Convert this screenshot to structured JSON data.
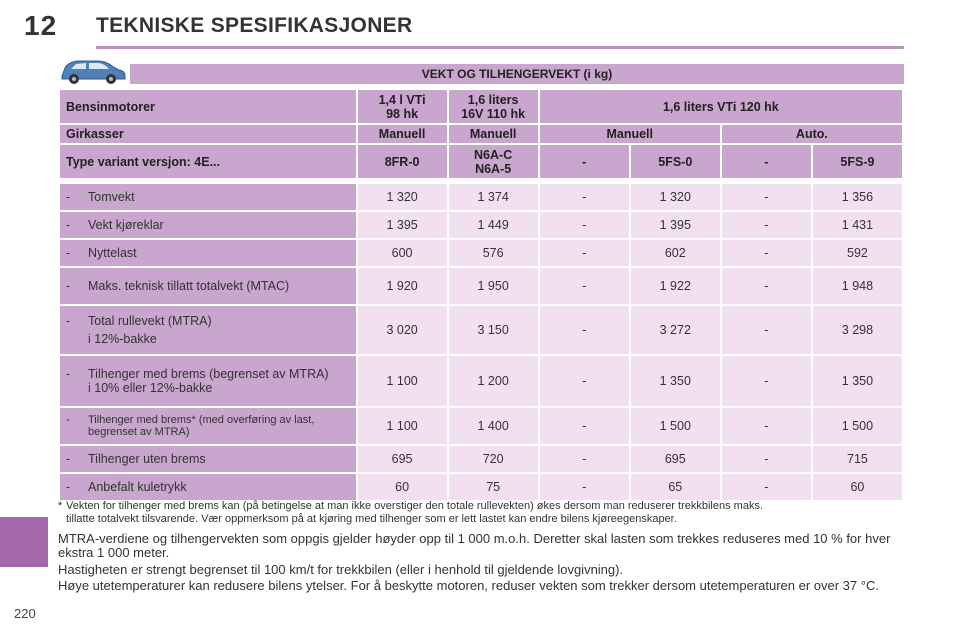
{
  "header": {
    "chapter_number": "12",
    "title": "TEKNISKE SPESIFIKASJONER"
  },
  "page_number": "220",
  "section_band": "VEKT OG TILHENGERVEKT (i kg)",
  "table": {
    "engine_label": "Bensinmotorer",
    "engines": [
      "1,4 l VTi 98 hk",
      "1,6 liters 16V 110 hk",
      "1,6 liters VTi 120 hk"
    ],
    "engine_lines": {
      "e1_line1": "1,4 l VTi",
      "e1_line2": "98 hk",
      "e2_line1": "1,6 liters",
      "e2_line2": "16V 110 hk",
      "e3": "1,6 liters VTi 120 hk"
    },
    "gearbox_label": "Girkasser",
    "gearboxes": [
      "Manuell",
      "Manuell",
      "Manuell",
      "Auto."
    ],
    "variant_label": "Type variant versjon: 4E...",
    "variants": {
      "v1": "8FR-0",
      "v2_line1": "N6A-C",
      "v2_line2": "N6A-5",
      "v3": "-",
      "v4": "5FS-0",
      "v5": "-",
      "v6": "5FS-9"
    },
    "rows": [
      {
        "label": "Tomvekt",
        "values": [
          "1 320",
          "1 374",
          "-",
          "1 320",
          "-",
          "1 356"
        ]
      },
      {
        "label": "Vekt kjøreklar",
        "values": [
          "1 395",
          "1 449",
          "-",
          "1 395",
          "-",
          "1 431"
        ]
      },
      {
        "label": "Nyttelast",
        "values": [
          "600",
          "576",
          "-",
          "602",
          "-",
          "592"
        ]
      },
      {
        "label": "Maks. teknisk tillatt totalvekt (MTAC)",
        "values": [
          "1 920",
          "1 950",
          "-",
          "1 922",
          "-",
          "1 948"
        ]
      },
      {
        "label": "Total rullevekt (MTRA)",
        "sub": "i 12%-bakke",
        "values": [
          "3 020",
          "3 150",
          "-",
          "3 272",
          "-",
          "3 298"
        ]
      },
      {
        "label": "Tilhenger med brems (begrenset av MTRA)",
        "sub": "i 10% eller 12%-bakke",
        "values": [
          "1 100",
          "1 200",
          "-",
          "1 350",
          "-",
          "1 350"
        ]
      },
      {
        "label": "Tilhenger med brems* (med overføring av last, begrenset av MTRA)",
        "values": [
          "1 100",
          "1 400",
          "-",
          "1 500",
          "-",
          "1 500"
        ]
      },
      {
        "label": "Tilhenger uten brems",
        "values": [
          "695",
          "720",
          "-",
          "695",
          "-",
          "715"
        ]
      },
      {
        "label": "Anbefalt kuletrykk",
        "values": [
          "60",
          "75",
          "-",
          "65",
          "-",
          "60"
        ]
      }
    ],
    "dash": "-"
  },
  "footnote": {
    "star": "*",
    "line1": "Vekten for tilhenger med brems kan (på betingelse at man ikke overstiger den totale rullevekten) økes dersom man reduserer trekkbilens maks.",
    "line2": "tillatte totalvekt tilsvarende. Vær oppmerksom på at kjøring med tilhenger som er lett lastet kan endre bilens kjøreegenskaper."
  },
  "paragraphs": [
    "MTRA-verdiene og tilhengervekten som oppgis gjelder høyder opp til 1 000 m.o.h. Deretter skal lasten som trekkes reduseres med 10 % for hver ekstra 1 000 meter.",
    "Hastigheten er strengt begrenset til 100 km/t for trekkbilen (eller i henhold til gjeldende lovgivning).",
    "Høye utetemperaturer kan redusere bilens ytelser. For å beskytte motoren, reduser vekten som trekker dersom utetemperaturen er over 37 °C."
  ],
  "icons": {
    "car": "car-icon"
  },
  "colors": {
    "header_fill": "#c9a6cd",
    "row_fill": "#f2e0f1",
    "accent": "#a569ab"
  }
}
